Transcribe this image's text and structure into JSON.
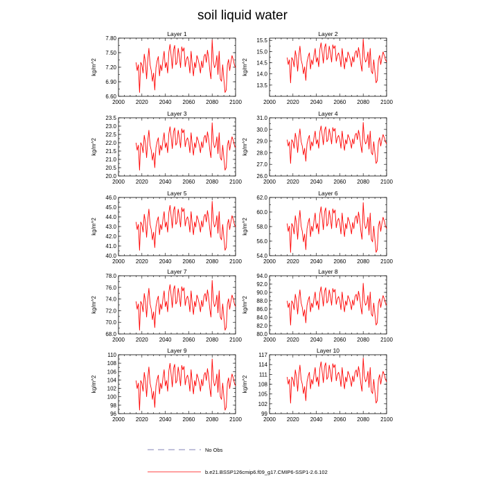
{
  "figure": {
    "title": "soil liquid water"
  },
  "legend": {
    "entries": [
      {
        "label": "No Obs",
        "color": "#5a5aa0",
        "style": "dashed"
      },
      {
        "label": "b.e21.BSSP126cmip6.f09_g17.CMIP6-SSP1-2.6.102",
        "color": "#ff0000",
        "style": "solid"
      }
    ]
  },
  "chart_data": [
    {
      "type": "line",
      "title": "Layer 1",
      "ylabel": "kg/m^2",
      "xlim": [
        2000,
        2100
      ],
      "ylim": [
        6.6,
        7.8
      ],
      "xticks": [
        "2000",
        "2020",
        "2040",
        "2060",
        "2080",
        "2100"
      ],
      "yticks": [
        "6.60",
        "6.90",
        "7.20",
        "7.50",
        "7.80"
      ],
      "series": [
        {
          "color": "#ff0000",
          "x_start": 2015,
          "x_end": 2100,
          "range": [
            6.62,
            7.76
          ],
          "values": []
        }
      ]
    },
    {
      "type": "line",
      "title": "Layer 2",
      "ylabel": "kg/m^2",
      "xlim": [
        2000,
        2100
      ],
      "ylim": [
        13.0,
        15.6
      ],
      "xticks": [
        "2000",
        "2020",
        "2040",
        "2060",
        "2080",
        "2100"
      ],
      "yticks": [
        "13.5",
        "14.0",
        "14.5",
        "15.0",
        "15.5"
      ],
      "series": [
        {
          "color": "#ff0000",
          "x_start": 2015,
          "x_end": 2100,
          "range": [
            13.5,
            15.55
          ],
          "values": []
        }
      ]
    },
    {
      "type": "line",
      "title": "Layer 3",
      "ylabel": "kg/m^2",
      "xlim": [
        2000,
        2100
      ],
      "ylim": [
        20.0,
        23.5
      ],
      "xticks": [
        "2000",
        "2020",
        "2040",
        "2060",
        "2080",
        "2100"
      ],
      "yticks": [
        "20.0",
        "20.5",
        "21.0",
        "21.5",
        "22.0",
        "22.5",
        "23.0",
        "23.5"
      ],
      "series": [
        {
          "color": "#ff0000",
          "x_start": 2015,
          "x_end": 2100,
          "range": [
            20.2,
            23.2
          ],
          "values": []
        }
      ]
    },
    {
      "type": "line",
      "title": "Layer 4",
      "ylabel": "kg/m^2",
      "xlim": [
        2000,
        2100
      ],
      "ylim": [
        26.0,
        31.0
      ],
      "xticks": [
        "2000",
        "2020",
        "2040",
        "2060",
        "2080",
        "2100"
      ],
      "yticks": [
        "26.0",
        "27.0",
        "28.0",
        "29.0",
        "30.0",
        "31.0"
      ],
      "series": [
        {
          "color": "#ff0000",
          "x_start": 2015,
          "x_end": 2100,
          "range": [
            26.9,
            30.6
          ],
          "values": []
        }
      ]
    },
    {
      "type": "line",
      "title": "Layer 5",
      "ylabel": "kg/m^2",
      "xlim": [
        2000,
        2100
      ],
      "ylim": [
        40.0,
        46.0
      ],
      "xticks": [
        "2000",
        "2020",
        "2040",
        "2060",
        "2080",
        "2100"
      ],
      "yticks": [
        "40.0",
        "41.0",
        "42.0",
        "43.0",
        "44.0",
        "45.0",
        "46.0"
      ],
      "series": [
        {
          "color": "#ff0000",
          "x_start": 2015,
          "x_end": 2100,
          "range": [
            40.3,
            45.6
          ],
          "values": []
        }
      ]
    },
    {
      "type": "line",
      "title": "Layer 6",
      "ylabel": "kg/m^2",
      "xlim": [
        2000,
        2100
      ],
      "ylim": [
        54.0,
        62.0
      ],
      "xticks": [
        "2000",
        "2020",
        "2040",
        "2060",
        "2080",
        "2100"
      ],
      "yticks": [
        "54.0",
        "56.0",
        "58.0",
        "60.0",
        "62.0"
      ],
      "series": [
        {
          "color": "#ff0000",
          "x_start": 2015,
          "x_end": 2100,
          "range": [
            54.1,
            61.3
          ],
          "values": []
        }
      ]
    },
    {
      "type": "line",
      "title": "Layer 7",
      "ylabel": "kg/m^2",
      "xlim": [
        2000,
        2100
      ],
      "ylim": [
        68.0,
        78.0
      ],
      "xticks": [
        "2000",
        "2020",
        "2040",
        "2060",
        "2080",
        "2100"
      ],
      "yticks": [
        "68.0",
        "70.0",
        "72.0",
        "74.0",
        "76.0",
        "78.0"
      ],
      "series": [
        {
          "color": "#ff0000",
          "x_start": 2015,
          "x_end": 2100,
          "range": [
            68.2,
            77.2
          ],
          "values": []
        }
      ]
    },
    {
      "type": "line",
      "title": "Layer 8",
      "ylabel": "kg/m^2",
      "xlim": [
        2000,
        2100
      ],
      "ylim": [
        80.0,
        94.0
      ],
      "xticks": [
        "2000",
        "2020",
        "2040",
        "2060",
        "2080",
        "2100"
      ],
      "yticks": [
        "80.0",
        "82.0",
        "84.0",
        "86.0",
        "88.0",
        "90.0",
        "92.0",
        "94.0"
      ],
      "series": [
        {
          "color": "#ff0000",
          "x_start": 2015,
          "x_end": 2100,
          "range": [
            81.6,
            92.2
          ],
          "values": []
        }
      ]
    },
    {
      "type": "line",
      "title": "Layer 9",
      "ylabel": "kg/m^2",
      "xlim": [
        2000,
        2100
      ],
      "ylim": [
        96.0,
        110.0
      ],
      "xticks": [
        "2000",
        "2020",
        "2040",
        "2060",
        "2080",
        "2100"
      ],
      "yticks": [
        "96",
        "98",
        "100",
        "102",
        "104",
        "106",
        "108",
        "110"
      ],
      "series": [
        {
          "color": "#ff0000",
          "x_start": 2015,
          "x_end": 2100,
          "range": [
            96.2,
            109.0
          ],
          "values": []
        }
      ]
    },
    {
      "type": "line",
      "title": "Layer 10",
      "ylabel": "kg/m^2",
      "xlim": [
        2000,
        2100
      ],
      "ylim": [
        99.0,
        117.0
      ],
      "xticks": [
        "2000",
        "2020",
        "2040",
        "2060",
        "2080",
        "2100"
      ],
      "yticks": [
        "99",
        "102",
        "105",
        "108",
        "111",
        "114",
        "117"
      ],
      "series": [
        {
          "color": "#ff0000",
          "x_start": 2015,
          "x_end": 2100,
          "range": [
            101.5,
            116.0
          ],
          "values": []
        }
      ]
    }
  ]
}
